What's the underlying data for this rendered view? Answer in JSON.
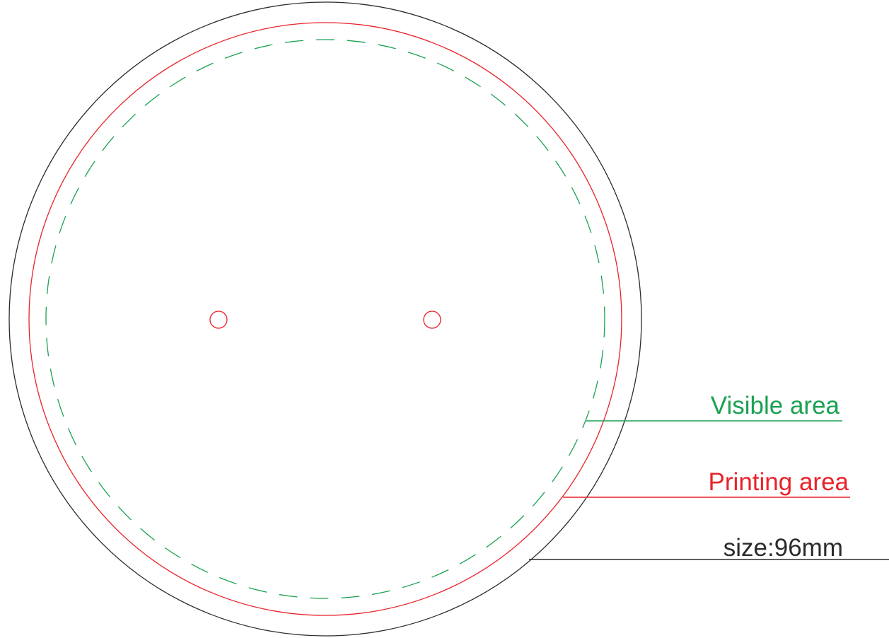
{
  "labels": {
    "visible_area": "Visible area",
    "printing_area": "Printing area",
    "size": "size:96mm"
  },
  "colors": {
    "outline": "#2b2b2b",
    "printing": "#e8232a",
    "visible": "#1aa152"
  }
}
